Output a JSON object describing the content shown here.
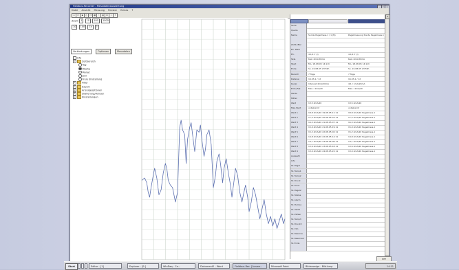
{
  "window": {
    "title": "Fieldbus-Recorder - Messdatenauswertung",
    "controls": [
      "_",
      "□",
      "x"
    ]
  },
  "menu": [
    "Datei",
    "Ansicht",
    "Messung",
    "Fenster",
    "Extras",
    "?"
  ],
  "left": {
    "zoom_label": "Zoom",
    "zoom_values": [
      "1",
      "10",
      "100",
      "1000"
    ],
    "point_values": [
      "10",
      "100",
      "1k"
    ],
    "tabs": [
      "Verbindungen",
      "Optionen",
      "Messdaten"
    ],
    "tree": [
      {
        "type": "item",
        "indent": 0,
        "label": "Info"
      },
      {
        "type": "folder",
        "indent": 0,
        "expander": "-",
        "label": "Zeitbereich"
      },
      {
        "type": "radio",
        "indent": 2,
        "on": false,
        "label": "Tag"
      },
      {
        "type": "radio",
        "indent": 2,
        "on": true,
        "label": "Woche"
      },
      {
        "type": "radio",
        "indent": 2,
        "on": false,
        "label": "Monat"
      },
      {
        "type": "radio",
        "indent": 2,
        "on": false,
        "label": "Jahr"
      },
      {
        "type": "radio",
        "indent": 2,
        "on": false,
        "label": "Freie Einstellung"
      },
      {
        "type": "folder",
        "indent": 0,
        "expander": "+",
        "label": "Filter"
      },
      {
        "type": "folder",
        "indent": 0,
        "expander": "+",
        "label": "Export"
      },
      {
        "type": "folder",
        "indent": 0,
        "expander": "+",
        "label": "Anzeigeoptionen"
      },
      {
        "type": "folder",
        "indent": 0,
        "expander": "+",
        "label": "Skalierung/Achsen"
      },
      {
        "type": "folder",
        "indent": 0,
        "expander": "+",
        "label": "Einstellungen"
      }
    ]
  },
  "chart_data": {
    "type": "line",
    "title": "",
    "xlabel": "",
    "ylabel": "",
    "grid": true,
    "ylim": [
      0,
      100
    ],
    "xlim": [
      0,
      200
    ],
    "series": [
      {
        "color": "#5b6fb0",
        "x": [
          0,
          4,
          7,
          9,
          11,
          13,
          16,
          18,
          21,
          24,
          27,
          30,
          33,
          35,
          37,
          40,
          43,
          45,
          47,
          50,
          53,
          55,
          57,
          60,
          62,
          64,
          67,
          69,
          71,
          74,
          77,
          80,
          82,
          84,
          87,
          89,
          91,
          94,
          97,
          100,
          103,
          105,
          108,
          110,
          113,
          115,
          118,
          121,
          124,
          126,
          129,
          131,
          134,
          137,
          140,
          142,
          145,
          148,
          150,
          153,
          156,
          159,
          162,
          165,
          168,
          171,
          174,
          177,
          180,
          183,
          186,
          189,
          192,
          195,
          198,
          200
        ],
        "y": [
          33,
          34,
          32,
          28,
          26,
          30,
          35,
          38,
          34,
          27,
          29,
          36,
          40,
          38,
          33,
          31,
          30,
          27,
          24,
          28,
          55,
          58,
          54,
          52,
          40,
          50,
          55,
          57,
          52,
          45,
          54,
          53,
          56,
          50,
          43,
          46,
          52,
          54,
          48,
          30,
          35,
          41,
          44,
          40,
          32,
          38,
          42,
          36,
          31,
          26,
          33,
          38,
          35,
          28,
          24,
          27,
          31,
          26,
          20,
          24,
          30,
          27,
          22,
          17,
          21,
          25,
          19,
          15,
          18,
          14,
          17,
          13,
          16,
          19,
          15,
          17
        ]
      }
    ]
  },
  "datapanel": {
    "header_bars": 3,
    "rows": [
      {
        "label": "Serie",
        "v1": "",
        "v2": ""
      },
      {
        "label": "Quelle",
        "v1": "",
        "v2": ""
      },
      {
        "label": "Name",
        "v1": "Sonde Pegelmess.1 / 1 (N)",
        "v2": "Pegelmessung Sonde Pegelmess.1"
      },
      {
        "label": "",
        "v1": "",
        "v2": ""
      },
      {
        "label": "Zeitb./Ber",
        "v1": "",
        "v2": ""
      },
      {
        "label": "Eh. Wert",
        "v1": "",
        "v2": ""
      },
      {
        "label": "Eh.",
        "v1": "4,1/1,7 (I)",
        "v2": "4,1/1,7 (I)"
      },
      {
        "label": "Skal.",
        "v1": "Kein 4mA/20mA",
        "v2": "Kein 4mA/20mA"
      },
      {
        "label": "Start",
        "v1": "Mo. 18.08.05 14:11h",
        "v2": "Mo. 18.08.05 14:11h"
      },
      {
        "label": "Ende",
        "v1": "So. 24.08.05 23:59h",
        "v2": "So. 24.08.05 23:59h"
      },
      {
        "label": "Bereich",
        "v1": "7 Tage",
        "v2": "7 Tage"
      },
      {
        "label": "Datenw.",
        "v1": "16.03,1 / 12",
        "v2": "16.03,1 / 12"
      },
      {
        "label": "Kanal",
        "v1": "Intervall 4mA/20mA",
        "v2": "4/1 / 1mA/20mA"
      },
      {
        "label": "Einh./Fak",
        "v1": "Max.: 4mA/20",
        "v2": "Max.: 4mA/20"
      },
      {
        "label": "Werte",
        "v1": "",
        "v2": ""
      },
      {
        "label": "Mittel",
        "v1": "",
        "v2": ""
      },
      {
        "label": "Wert",
        "v1": "13,5 4mA/20",
        "v2": "13,5 4mA/20"
      },
      {
        "label": "Max.Wert",
        "v1": "unbekannt",
        "v2": "unbekannt"
      },
      {
        "label": "Wert 1",
        "v1": "18,8 4mA/20 19.08.05 11:11",
        "v2": "18,8 4mA/20 Pegelmess.1"
      },
      {
        "label": "Wert 2",
        "v1": "17,5 4mA/20 20.08.05 03:11",
        "v2": "17,5 4mA/20 Pegelmess.1"
      },
      {
        "label": "Wert 3",
        "v1": "16,3 4mA/20 21.08.05 07:11",
        "v2": "16,3 4mA/20 Pegelmess.1"
      },
      {
        "label": "Wert 4",
        "v1": "15,9 4mA/20 21.08.05 19:11",
        "v2": "15,9 4mA/20 Pegelmess.1"
      },
      {
        "label": "Wert 5",
        "v1": "15,2 4mA/20 22.08.05 02:11",
        "v2": "15,2 4mA/20 Pegelmess.1"
      },
      {
        "label": "Wert 6",
        "v1": "14,8 4mA/20 22.08.05 14:11",
        "v2": "14,8 4mA/20 Pegelmess.1"
      },
      {
        "label": "Wert 7",
        "v1": "14,1 4mA/20 23.08.05 06:11",
        "v2": "14,1 4mA/20 Pegelmess.1"
      },
      {
        "label": "Wert 8",
        "v1": "13,6 4mA/20 23.08.05 18:11",
        "v2": "13,6 4mA/20 Pegelmess.1"
      },
      {
        "label": "Wert 9",
        "v1": "13,0 4mA/20 24.08.05 22:11",
        "v2": "13,0 4mA/20 Pegelmess.1"
      },
      {
        "label": "Auswahl",
        "v1": "",
        "v2": ""
      },
      {
        "label": "Info",
        "v1": "",
        "v2": ""
      },
      {
        "label": "S1 Pegel",
        "v1": "",
        "v2": ""
      },
      {
        "label": "S1 Temp1",
        "v1": "",
        "v2": ""
      },
      {
        "label": "S1 Temp2",
        "v1": "",
        "v2": ""
      },
      {
        "label": "S1 Druck",
        "v1": "",
        "v2": ""
      },
      {
        "label": "S1 Fluss",
        "v1": "",
        "v2": ""
      },
      {
        "label": "S1 Pegel2",
        "v1": "",
        "v2": ""
      },
      {
        "label": "S1 Status",
        "v1": "",
        "v2": ""
      },
      {
        "label": "S1 Alarm",
        "v1": "",
        "v2": ""
      },
      {
        "label": "S1 Pumpe",
        "v1": "",
        "v2": ""
      },
      {
        "label": "S1 Ventil",
        "v1": "",
        "v2": ""
      },
      {
        "label": "S1 Zähler",
        "v1": "",
        "v2": ""
      },
      {
        "label": "S1 Temp3",
        "v1": "",
        "v2": ""
      },
      {
        "label": "S1 Druck2",
        "v1": "",
        "v2": ""
      },
      {
        "label": "S1 Info",
        "v1": "",
        "v2": ""
      },
      {
        "label": "S1 Reserve",
        "v1": "",
        "v2": ""
      },
      {
        "label": "S1 Reserve2",
        "v1": "",
        "v2": ""
      },
      {
        "label": "S1 Ende",
        "v1": "",
        "v2": ""
      },
      {
        "label": "",
        "v1": "",
        "v2": ""
      }
    ]
  },
  "taskbar": {
    "start": "Start",
    "items": [
      {
        "label": "Editor - [1]",
        "active": false
      },
      {
        "label": "Explorer - [E:]",
        "active": false
      },
      {
        "label": "WinDaq - Ca...",
        "active": false
      },
      {
        "label": "Dokument2 - Word",
        "active": false
      },
      {
        "label": "Fieldbus-Rec. [Auswe...",
        "active": true
      },
      {
        "label": "Microsoft Paint",
        "active": false
      },
      {
        "label": "Bildanzeige - Bild.bmp",
        "active": false
      }
    ],
    "clock": "14:11",
    "tray_above": "DPP"
  }
}
